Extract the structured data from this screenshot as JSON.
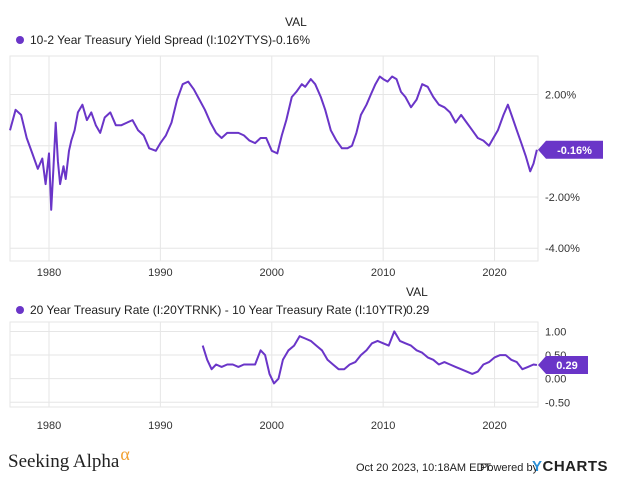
{
  "colors": {
    "series": "#6a35c8",
    "grid": "#e6e6e6",
    "axis_text": "#333333"
  },
  "chart_data": [
    {
      "type": "line",
      "value_column_header": "VAL",
      "series": [
        {
          "name": "10-2 Year Treasury Yield Spread (I:102YTYS)",
          "current_value_label": "-0.16%",
          "current_value": -0.16
        }
      ],
      "x_ticks": [
        "1980",
        "1990",
        "2000",
        "2010",
        "2020"
      ],
      "y_ticks": [
        "2.00%",
        "0.00%",
        "-2.00%",
        "-4.00%"
      ],
      "ylim": [
        -4.5,
        3.5
      ],
      "xlim": [
        1976.5,
        2023.9
      ],
      "points": [
        [
          1976.5,
          0.6
        ],
        [
          1977,
          1.4
        ],
        [
          1977.5,
          1.2
        ],
        [
          1978,
          0.3
        ],
        [
          1978.5,
          -0.3
        ],
        [
          1979,
          -0.9
        ],
        [
          1979.4,
          -0.5
        ],
        [
          1979.7,
          -1.5
        ],
        [
          1980,
          -0.3
        ],
        [
          1980.2,
          -2.5
        ],
        [
          1980.4,
          -0.9
        ],
        [
          1980.6,
          0.9
        ],
        [
          1980.8,
          -0.6
        ],
        [
          1981,
          -1.5
        ],
        [
          1981.3,
          -0.8
        ],
        [
          1981.5,
          -1.3
        ],
        [
          1981.8,
          -0.2
        ],
        [
          1982,
          0.2
        ],
        [
          1982.3,
          0.6
        ],
        [
          1982.6,
          1.3
        ],
        [
          1983,
          1.6
        ],
        [
          1983.4,
          1.0
        ],
        [
          1983.8,
          1.3
        ],
        [
          1984.2,
          0.8
        ],
        [
          1984.6,
          0.5
        ],
        [
          1985,
          1.1
        ],
        [
          1985.5,
          1.3
        ],
        [
          1986,
          0.8
        ],
        [
          1986.5,
          0.8
        ],
        [
          1987,
          0.9
        ],
        [
          1987.5,
          1.0
        ],
        [
          1988,
          0.6
        ],
        [
          1988.5,
          0.4
        ],
        [
          1989,
          -0.1
        ],
        [
          1989.6,
          -0.2
        ],
        [
          1990,
          0.1
        ],
        [
          1990.5,
          0.4
        ],
        [
          1991,
          0.9
        ],
        [
          1991.5,
          1.8
        ],
        [
          1992,
          2.4
        ],
        [
          1992.5,
          2.5
        ],
        [
          1993,
          2.2
        ],
        [
          1993.5,
          1.8
        ],
        [
          1994,
          1.4
        ],
        [
          1994.5,
          0.9
        ],
        [
          1995,
          0.5
        ],
        [
          1995.5,
          0.3
        ],
        [
          1996,
          0.5
        ],
        [
          1996.5,
          0.5
        ],
        [
          1997,
          0.5
        ],
        [
          1997.5,
          0.4
        ],
        [
          1998,
          0.2
        ],
        [
          1998.5,
          0.1
        ],
        [
          1999,
          0.3
        ],
        [
          1999.5,
          0.3
        ],
        [
          2000,
          -0.2
        ],
        [
          2000.5,
          -0.3
        ],
        [
          2000.9,
          0.4
        ],
        [
          2001.3,
          1.0
        ],
        [
          2001.8,
          1.9
        ],
        [
          2002.2,
          2.1
        ],
        [
          2002.7,
          2.4
        ],
        [
          2003,
          2.3
        ],
        [
          2003.5,
          2.6
        ],
        [
          2003.9,
          2.4
        ],
        [
          2004.4,
          1.9
        ],
        [
          2004.8,
          1.4
        ],
        [
          2005.3,
          0.6
        ],
        [
          2005.8,
          0.2
        ],
        [
          2006.3,
          -0.1
        ],
        [
          2006.8,
          -0.1
        ],
        [
          2007.2,
          0.0
        ],
        [
          2007.6,
          0.5
        ],
        [
          2008,
          1.2
        ],
        [
          2008.5,
          1.6
        ],
        [
          2008.9,
          2.0
        ],
        [
          2009.3,
          2.4
        ],
        [
          2009.7,
          2.7
        ],
        [
          2010,
          2.6
        ],
        [
          2010.4,
          2.5
        ],
        [
          2010.8,
          2.7
        ],
        [
          2011.2,
          2.6
        ],
        [
          2011.6,
          2.1
        ],
        [
          2012,
          1.9
        ],
        [
          2012.5,
          1.5
        ],
        [
          2013,
          1.8
        ],
        [
          2013.5,
          2.4
        ],
        [
          2014,
          2.3
        ],
        [
          2014.5,
          1.9
        ],
        [
          2015,
          1.6
        ],
        [
          2015.5,
          1.5
        ],
        [
          2016,
          1.3
        ],
        [
          2016.5,
          0.9
        ],
        [
          2017,
          1.2
        ],
        [
          2017.5,
          0.9
        ],
        [
          2018,
          0.6
        ],
        [
          2018.5,
          0.3
        ],
        [
          2019,
          0.2
        ],
        [
          2019.5,
          0.0
        ],
        [
          2019.9,
          0.3
        ],
        [
          2020.3,
          0.6
        ],
        [
          2020.8,
          1.2
        ],
        [
          2021.2,
          1.6
        ],
        [
          2021.6,
          1.1
        ],
        [
          2022,
          0.6
        ],
        [
          2022.4,
          0.1
        ],
        [
          2022.8,
          -0.4
        ],
        [
          2023.2,
          -1.0
        ],
        [
          2023.5,
          -0.7
        ],
        [
          2023.8,
          -0.16
        ]
      ]
    },
    {
      "type": "line",
      "value_column_header": "VAL",
      "series": [
        {
          "name": "20 Year Treasury Rate (I:20YTRNK) - 10 Year Treasury Rate (I:10YTR)",
          "current_value_label": "0.29",
          "current_value": 0.29
        }
      ],
      "x_ticks": [
        "1980",
        "1990",
        "2000",
        "2010",
        "2020"
      ],
      "y_ticks": [
        "1.00",
        "0.50",
        "0.00",
        "-0.50"
      ],
      "ylim": [
        -0.6,
        1.2
      ],
      "xlim": [
        1976.5,
        2023.9
      ],
      "points": [
        [
          1993.8,
          0.7
        ],
        [
          1994.2,
          0.4
        ],
        [
          1994.6,
          0.2
        ],
        [
          1995,
          0.3
        ],
        [
          1995.5,
          0.25
        ],
        [
          1996,
          0.3
        ],
        [
          1996.5,
          0.3
        ],
        [
          1997,
          0.25
        ],
        [
          1997.5,
          0.3
        ],
        [
          1998,
          0.3
        ],
        [
          1998.5,
          0.3
        ],
        [
          1999,
          0.6
        ],
        [
          1999.4,
          0.5
        ],
        [
          1999.8,
          0.1
        ],
        [
          2000.2,
          -0.1
        ],
        [
          2000.6,
          0.0
        ],
        [
          2001,
          0.4
        ],
        [
          2001.5,
          0.6
        ],
        [
          2002,
          0.7
        ],
        [
          2002.5,
          0.9
        ],
        [
          2003,
          0.85
        ],
        [
          2003.5,
          0.8
        ],
        [
          2004,
          0.7
        ],
        [
          2004.5,
          0.6
        ],
        [
          2005,
          0.4
        ],
        [
          2005.5,
          0.3
        ],
        [
          2006,
          0.2
        ],
        [
          2006.5,
          0.2
        ],
        [
          2007,
          0.3
        ],
        [
          2007.5,
          0.35
        ],
        [
          2008,
          0.5
        ],
        [
          2008.5,
          0.6
        ],
        [
          2009,
          0.75
        ],
        [
          2009.5,
          0.8
        ],
        [
          2010,
          0.75
        ],
        [
          2010.5,
          0.7
        ],
        [
          2011,
          1.0
        ],
        [
          2011.5,
          0.8
        ],
        [
          2012,
          0.75
        ],
        [
          2012.5,
          0.7
        ],
        [
          2013,
          0.6
        ],
        [
          2013.5,
          0.55
        ],
        [
          2014,
          0.45
        ],
        [
          2014.5,
          0.4
        ],
        [
          2015,
          0.3
        ],
        [
          2015.5,
          0.35
        ],
        [
          2016,
          0.3
        ],
        [
          2016.5,
          0.25
        ],
        [
          2017,
          0.2
        ],
        [
          2017.5,
          0.15
        ],
        [
          2018,
          0.1
        ],
        [
          2018.5,
          0.15
        ],
        [
          2019,
          0.3
        ],
        [
          2019.5,
          0.35
        ],
        [
          2020,
          0.45
        ],
        [
          2020.5,
          0.5
        ],
        [
          2021,
          0.5
        ],
        [
          2021.5,
          0.4
        ],
        [
          2022,
          0.35
        ],
        [
          2022.5,
          0.2
        ],
        [
          2023,
          0.25
        ],
        [
          2023.5,
          0.3
        ],
        [
          2023.8,
          0.29
        ]
      ]
    }
  ],
  "footer": {
    "brand_text": "Seeking Alpha",
    "brand_mark": "α",
    "timestamp": "Oct 20 2023, 10:18AM EDT.",
    "powered_by": "Powered by",
    "ycharts_y": "Y",
    "ycharts_rest": "CHARTS"
  }
}
